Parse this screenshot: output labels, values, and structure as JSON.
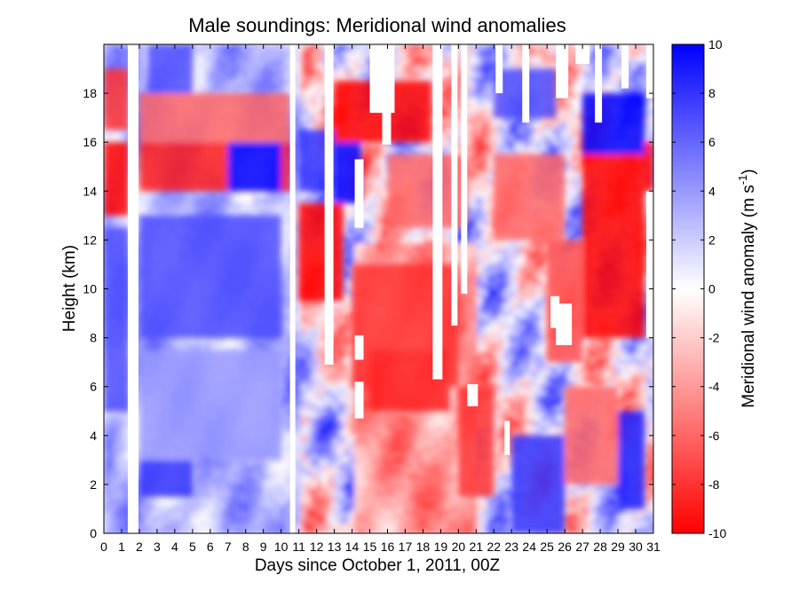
{
  "chart_data": {
    "type": "heatmap",
    "title": "Male soundings:  Meridional wind anomalies",
    "xlabel": "Days since October 1, 2011, 00Z",
    "ylabel": "Height (km)",
    "xlim": [
      0,
      31
    ],
    "ylim": [
      0,
      20
    ],
    "x_ticks": [
      "0",
      "1",
      "2",
      "3",
      "4",
      "5",
      "6",
      "7",
      "8",
      "9",
      "10",
      "11",
      "12",
      "13",
      "14",
      "15",
      "16",
      "17",
      "18",
      "19",
      "20",
      "21",
      "22",
      "23",
      "24",
      "25",
      "26",
      "27",
      "28",
      "29",
      "30",
      "31"
    ],
    "y_ticks": [
      "0",
      "2",
      "4",
      "6",
      "8",
      "10",
      "12",
      "14",
      "16",
      "18"
    ],
    "colorbar": {
      "label_main": "Meridional wind anomaly (m s",
      "label_sup": "-1",
      "label_end": ")",
      "range": [
        -10,
        10
      ],
      "ticks": [
        "-10",
        "-8",
        "-6",
        "-4",
        "-2",
        "0",
        "2",
        "4",
        "6",
        "8",
        "10"
      ],
      "colormap": [
        "#ff0000",
        "#ffffff",
        "#0000ff"
      ]
    },
    "features": [
      {
        "x": [
          0.0,
          1.4
        ],
        "y": [
          13.0,
          16.0
        ],
        "value": -10
      },
      {
        "x": [
          0.0,
          1.4
        ],
        "y": [
          16.5,
          19.0
        ],
        "value": -8
      },
      {
        "x": [
          0.0,
          1.4
        ],
        "y": [
          5.0,
          12.5
        ],
        "value": 7
      },
      {
        "x": [
          2.0,
          10.5
        ],
        "y": [
          14.0,
          16.5
        ],
        "value": -9
      },
      {
        "x": [
          2.0,
          10.5
        ],
        "y": [
          16.0,
          18.0
        ],
        "value": -6
      },
      {
        "x": [
          2.0,
          10.0
        ],
        "y": [
          8.0,
          13.0
        ],
        "value": 7
      },
      {
        "x": [
          7.0,
          10.0
        ],
        "y": [
          14.0,
          16.0
        ],
        "value": 10
      },
      {
        "x": [
          2.5,
          5.0
        ],
        "y": [
          18.0,
          20.0
        ],
        "value": 7
      },
      {
        "x": [
          2.0,
          10.0
        ],
        "y": [
          3.0,
          7.5
        ],
        "value": 4
      },
      {
        "x": [
          2.0,
          5.0
        ],
        "y": [
          1.5,
          3.0
        ],
        "value": 8
      },
      {
        "x": [
          11.0,
          13.5
        ],
        "y": [
          9.5,
          13.5
        ],
        "value": -10
      },
      {
        "x": [
          13.0,
          14.5
        ],
        "y": [
          13.5,
          16.0
        ],
        "value": 10
      },
      {
        "x": [
          11.0,
          13.0
        ],
        "y": [
          14.0,
          16.5
        ],
        "value": 8
      },
      {
        "x": [
          13.0,
          18.5
        ],
        "y": [
          16.0,
          18.5
        ],
        "value": -10
      },
      {
        "x": [
          14.0,
          20.0
        ],
        "y": [
          6.0,
          11.0
        ],
        "value": -8
      },
      {
        "x": [
          15.0,
          19.5
        ],
        "y": [
          5.0,
          7.5
        ],
        "value": -9
      },
      {
        "x": [
          16.0,
          20.5
        ],
        "y": [
          12.5,
          15.5
        ],
        "value": -6
      },
      {
        "x": [
          20.0,
          22.0
        ],
        "y": [
          1.5,
          6.0
        ],
        "value": -8
      },
      {
        "x": [
          22.0,
          26.0
        ],
        "y": [
          12.0,
          15.5
        ],
        "value": -6
      },
      {
        "x": [
          22.0,
          25.5
        ],
        "y": [
          17.0,
          19.0
        ],
        "value": 7
      },
      {
        "x": [
          25.0,
          27.0
        ],
        "y": [
          7.0,
          12.0
        ],
        "value": -7
      },
      {
        "x": [
          27.0,
          30.5
        ],
        "y": [
          8.0,
          15.5
        ],
        "value": -10
      },
      {
        "x": [
          27.0,
          30.5
        ],
        "y": [
          15.5,
          18.0
        ],
        "value": 10
      },
      {
        "x": [
          29.0,
          30.5
        ],
        "y": [
          1.0,
          5.0
        ],
        "value": 9
      },
      {
        "x": [
          23.0,
          26.0
        ],
        "y": [
          0.0,
          4.0
        ],
        "value": 8
      },
      {
        "x": [
          26.0,
          29.0
        ],
        "y": [
          2.0,
          6.0
        ],
        "value": -6
      },
      {
        "x": [
          30.5,
          31.0
        ],
        "y": [
          14.0,
          16.0
        ],
        "value": -10
      }
    ],
    "missing": [
      {
        "x": [
          1.35,
          1.95
        ],
        "y": [
          0,
          20
        ]
      },
      {
        "x": [
          10.5,
          10.8
        ],
        "y": [
          0,
          20
        ]
      },
      {
        "x": [
          12.45,
          12.95
        ],
        "y": [
          6.9,
          20
        ]
      },
      {
        "x": [
          14.15,
          14.65
        ],
        "y": [
          12.5,
          15.3
        ]
      },
      {
        "x": [
          14.15,
          14.65
        ],
        "y": [
          7.1,
          8.1
        ]
      },
      {
        "x": [
          14.15,
          14.65
        ],
        "y": [
          4.7,
          6.2
        ]
      },
      {
        "x": [
          15.0,
          16.4
        ],
        "y": [
          17.2,
          20
        ]
      },
      {
        "x": [
          15.7,
          16.2
        ],
        "y": [
          15.9,
          17.3
        ]
      },
      {
        "x": [
          18.55,
          19.1
        ],
        "y": [
          6.3,
          20
        ]
      },
      {
        "x": [
          19.6,
          19.95
        ],
        "y": [
          8.5,
          20
        ]
      },
      {
        "x": [
          20.15,
          20.5
        ],
        "y": [
          9.8,
          20
        ]
      },
      {
        "x": [
          20.5,
          21.1
        ],
        "y": [
          5.2,
          6.1
        ]
      },
      {
        "x": [
          22.6,
          22.9
        ],
        "y": [
          3.2,
          4.6
        ]
      },
      {
        "x": [
          22.1,
          22.5
        ],
        "y": [
          18.0,
          20
        ]
      },
      {
        "x": [
          23.6,
          24.0
        ],
        "y": [
          16.8,
          20
        ]
      },
      {
        "x": [
          25.2,
          25.7
        ],
        "y": [
          8.4,
          9.7
        ]
      },
      {
        "x": [
          25.5,
          26.4
        ],
        "y": [
          7.7,
          9.4
        ]
      },
      {
        "x": [
          25.5,
          26.2
        ],
        "y": [
          17.8,
          20
        ]
      },
      {
        "x": [
          26.6,
          27.4
        ],
        "y": [
          19.2,
          20
        ]
      },
      {
        "x": [
          27.7,
          28.1
        ],
        "y": [
          16.8,
          20
        ]
      },
      {
        "x": [
          29.2,
          29.6
        ],
        "y": [
          18.2,
          20
        ]
      },
      {
        "x": [
          30.6,
          31.0
        ],
        "y": [
          8.0,
          14.0
        ]
      },
      {
        "x": [
          30.6,
          31.0
        ],
        "y": [
          17.8,
          20
        ]
      }
    ]
  }
}
